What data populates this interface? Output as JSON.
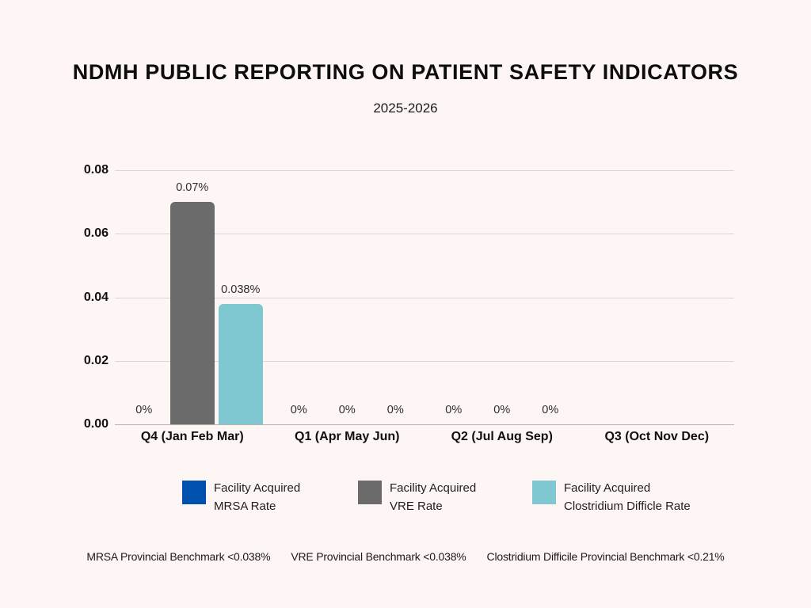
{
  "header": {
    "title": "NDMH PUBLIC REPORTING ON PATIENT SAFETY INDICATORS",
    "subtitle": "2025-2026"
  },
  "chart_data": {
    "type": "bar",
    "title": "NDMH PUBLIC REPORTING ON PATIENT SAFETY INDICATORS",
    "subtitle": "2025-2026",
    "categories": [
      "Q4 (Jan Feb Mar)",
      "Q1 (Apr May Jun)",
      "Q2 (Jul Aug Sep)",
      "Q3 (Oct Nov Dec)"
    ],
    "series": [
      {
        "name": "Facility Acquired MRSA Rate",
        "color": "#0050AD",
        "values": [
          0,
          0,
          0,
          null
        ],
        "labels": [
          "0%",
          "0%",
          "0%",
          ""
        ]
      },
      {
        "name": "Facility Acquired VRE Rate",
        "color": "#6B6B6B",
        "values": [
          0.07,
          0,
          0,
          null
        ],
        "labels": [
          "0.07%",
          "0%",
          "0%",
          ""
        ]
      },
      {
        "name": "Facility Acquired Clostridium Difficle Rate",
        "color": "#7FC7D1",
        "values": [
          0.038,
          0,
          0,
          null
        ],
        "labels": [
          "0.038%",
          "0%",
          "0%",
          ""
        ]
      }
    ],
    "ylim": [
      0,
      0.08
    ],
    "yticks": [
      "0.00",
      "0.02",
      "0.04",
      "0.06",
      "0.08"
    ],
    "grid": true,
    "legend_position": "bottom"
  },
  "legend": {
    "items": [
      {
        "line1": "Facility Acquired",
        "line2": "MRSA Rate",
        "color": "#0050AD"
      },
      {
        "line1": "Facility Acquired",
        "line2": "VRE Rate",
        "color": "#6B6B6B"
      },
      {
        "line1": "Facility Acquired",
        "line2": "Clostridium Difficle Rate",
        "color": "#7FC7D1"
      }
    ]
  },
  "footnotes": [
    "MRSA Provincial Benchmark <0.038%",
    "VRE Provincial Benchmark <0.038%",
    "Clostridium Difficile Provincial Benchmark <0.21%"
  ],
  "colors": {
    "background": "#FDF6F4",
    "gridline": "#DCD8D6",
    "axis_baseline": "#B7B3B1",
    "mrsa_blue": "#0050AD",
    "vre_gray": "#6B6B6B",
    "cdiff_teal": "#7FC7D1"
  }
}
